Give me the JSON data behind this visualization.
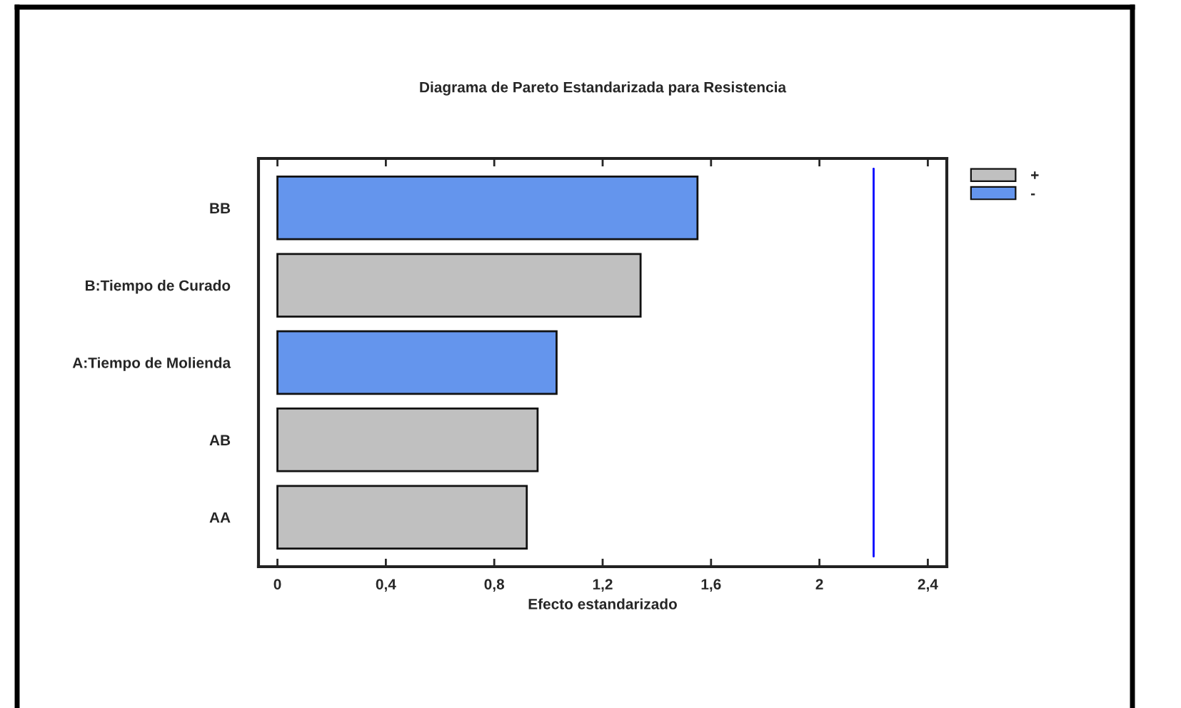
{
  "chart_data": {
    "type": "bar",
    "orientation": "horizontal",
    "title": "Diagrama de Pareto Estandarizada para Resistencia",
    "xlabel": "Efecto estandarizado",
    "categories": [
      "BB",
      "B:Tiempo de Curado",
      "A:Tiempo de Molienda",
      "AB",
      "AA"
    ],
    "series": [
      {
        "name": "+",
        "color": "#c0c0c0",
        "values": [
          null,
          1.34,
          null,
          0.96,
          0.92
        ]
      },
      {
        "name": "-",
        "color": "#6495ed",
        "values": [
          1.55,
          null,
          1.03,
          null,
          null
        ]
      }
    ],
    "xlim": [
      -0.07,
      2.47
    ],
    "xticks": [
      0,
      {
        "value": 0.4,
        "label": "0,4"
      },
      {
        "value": 0.8,
        "label": "0,8"
      },
      {
        "value": 1.2,
        "label": "1,2"
      },
      {
        "value": 1.6,
        "label": "1,6"
      },
      2,
      {
        "value": 2.4,
        "label": "2,4"
      }
    ],
    "ref_lines": [
      {
        "axis": "x",
        "value": 2.2,
        "color": "#0000ff"
      }
    ],
    "legend": "top right"
  }
}
